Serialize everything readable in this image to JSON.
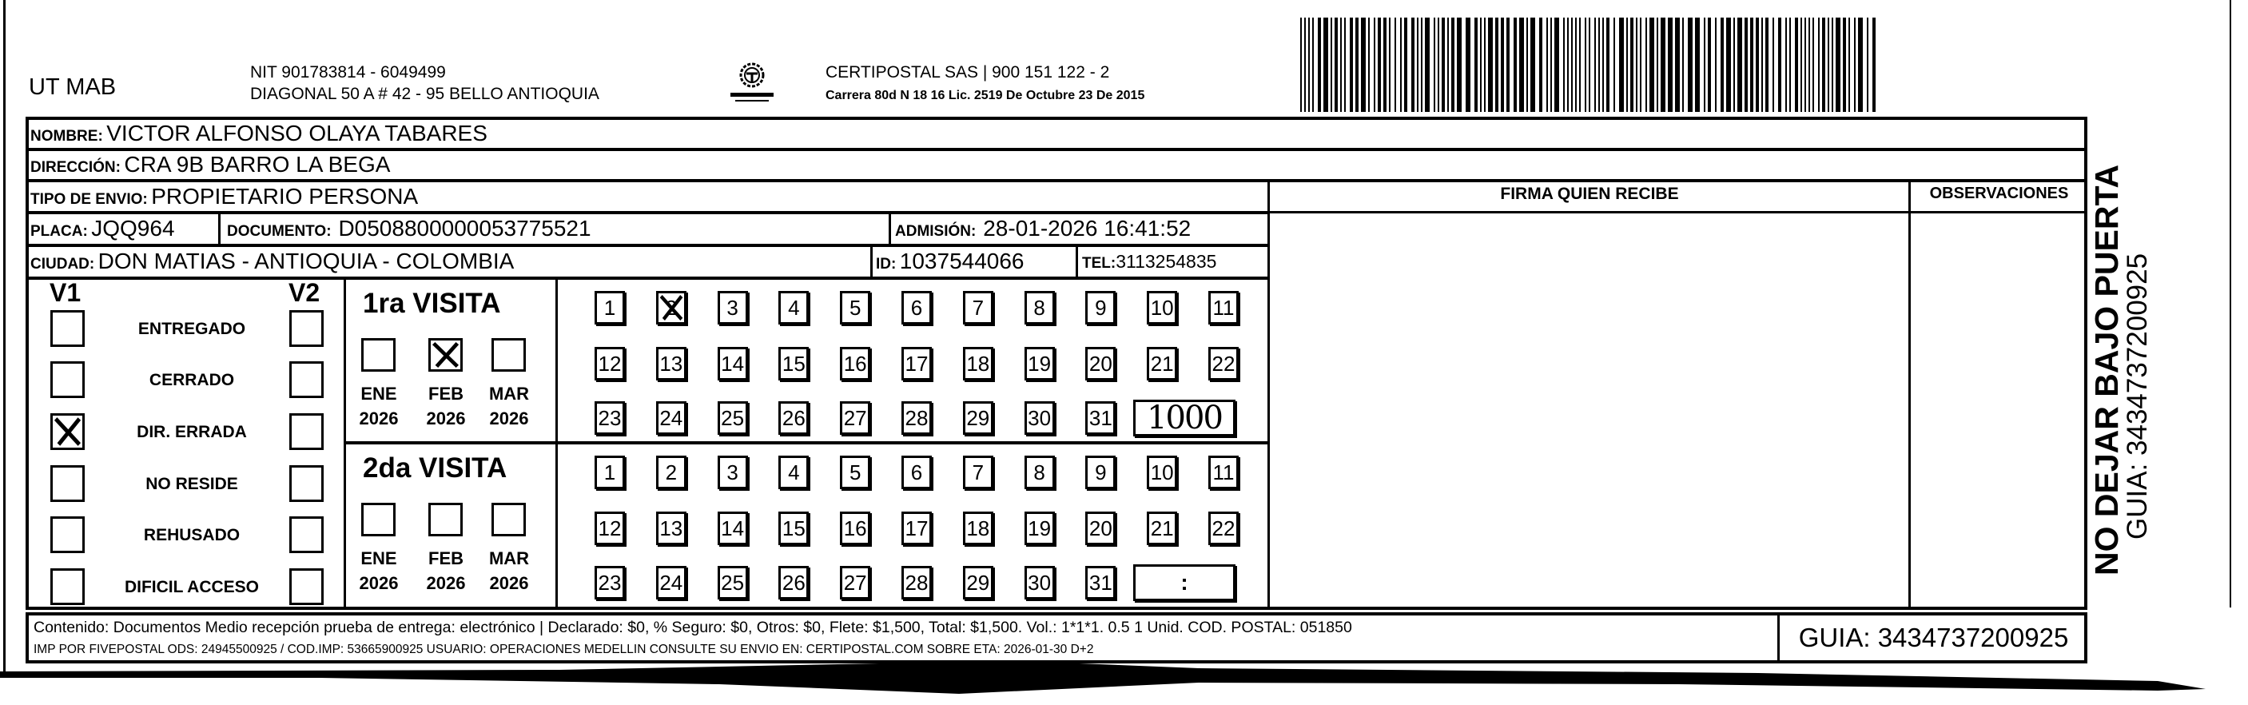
{
  "header": {
    "company": "UT MAB",
    "nit": "NIT 901783814 - 6049499",
    "address": "DIAGONAL 50 A # 42 - 95  BELLO  ANTIOQUIA",
    "logo_text": "CERTIPOSTAL",
    "carrier": "CERTIPOSTAL SAS | 900 151 122 - 2",
    "license": "Carrera 80d N 18 16  Lic. 2519 De Octubre 23 De 2015"
  },
  "fields": {
    "nombre_label": "NOMBRE:",
    "nombre": "VICTOR ALFONSO OLAYA TABARES",
    "direccion_label": "DIRECCIÓN:",
    "direccion": "CRA 9B BARRO LA BEGA",
    "tipo_label": "TIPO DE ENVIO:",
    "tipo": "PROPIETARIO PERSONA",
    "placa_label": "PLACA:",
    "placa": "JQQ964",
    "documento_label": "DOCUMENTO:",
    "documento": "D0508800000053775521",
    "admision_label": "ADMISIÓN:",
    "admision": "28-01-2026 16:41:52",
    "ciudad_label": "CIUDAD:",
    "ciudad": "DON MATIAS - ANTIOQUIA - COLOMBIA",
    "id_label": "ID:",
    "id": "1037544066",
    "tel_label": "TEL:",
    "tel": "3113254835"
  },
  "columns": {
    "firma": "FIRMA QUIEN RECIBE",
    "observaciones": "OBSERVACIONES"
  },
  "status": {
    "v1_label": "V1",
    "v2_label": "V2",
    "items": [
      {
        "label": "ENTREGADO",
        "v1": false,
        "v2": false
      },
      {
        "label": "CERRADO",
        "v1": false,
        "v2": false
      },
      {
        "label": "DIR. ERRADA",
        "v1": true,
        "v2": false
      },
      {
        "label": "NO RESIDE",
        "v1": false,
        "v2": false
      },
      {
        "label": "REHUSADO",
        "v1": false,
        "v2": false
      },
      {
        "label": "DIFICIL ACCESO",
        "v1": false,
        "v2": false
      }
    ]
  },
  "visits": [
    {
      "title": "1ra VISITA",
      "months": [
        {
          "name": "ENE",
          "year": "2026",
          "checked": false
        },
        {
          "name": "FEB",
          "year": "2026",
          "checked": true
        },
        {
          "name": "MAR",
          "year": "2026",
          "checked": false
        }
      ],
      "days": [
        "1",
        "2",
        "3",
        "4",
        "5",
        "6",
        "7",
        "8",
        "9",
        "10",
        "11",
        "12",
        "13",
        "14",
        "15",
        "16",
        "17",
        "18",
        "19",
        "20",
        "21",
        "22",
        "23",
        "24",
        "25",
        "26",
        "27",
        "28",
        "29",
        "30",
        "31"
      ],
      "checked_day": "2",
      "time": "1000"
    },
    {
      "title": "2da VISITA",
      "months": [
        {
          "name": "ENE",
          "year": "2026",
          "checked": false
        },
        {
          "name": "FEB",
          "year": "2026",
          "checked": false
        },
        {
          "name": "MAR",
          "year": "2026",
          "checked": false
        }
      ],
      "days": [
        "1",
        "2",
        "3",
        "4",
        "5",
        "6",
        "7",
        "8",
        "9",
        "10",
        "11",
        "12",
        "13",
        "14",
        "15",
        "16",
        "17",
        "18",
        "19",
        "20",
        "21",
        "22",
        "23",
        "24",
        "25",
        "26",
        "27",
        "28",
        "29",
        "30",
        "31"
      ],
      "checked_day": null,
      "time": ":"
    }
  ],
  "footer": {
    "line1": "Contenido: Documentos Medio recepción prueba de entrega: electrónico | Declarado: $0, % Seguro: $0, Otros: $0, Flete: $1,500, Total: $1,500. Vol.: 1*1*1. 0.5  1 Unid. COD. POSTAL: 051850",
    "line2": "IMP POR FIVEPOSTAL ODS: 24945500925 / COD.IMP: 53665900925 USUARIO: OPERACIONES MEDELLIN CONSULTE SU ENVIO EN: CERTIPOSTAL.COM SOBRE ETA: 2026-01-30 D+2",
    "guia": "GUIA: 3434737200925"
  },
  "side": {
    "warning": "NO DEJAR BAJO PUERTA",
    "guia": "GUIA: 3434737200925"
  }
}
